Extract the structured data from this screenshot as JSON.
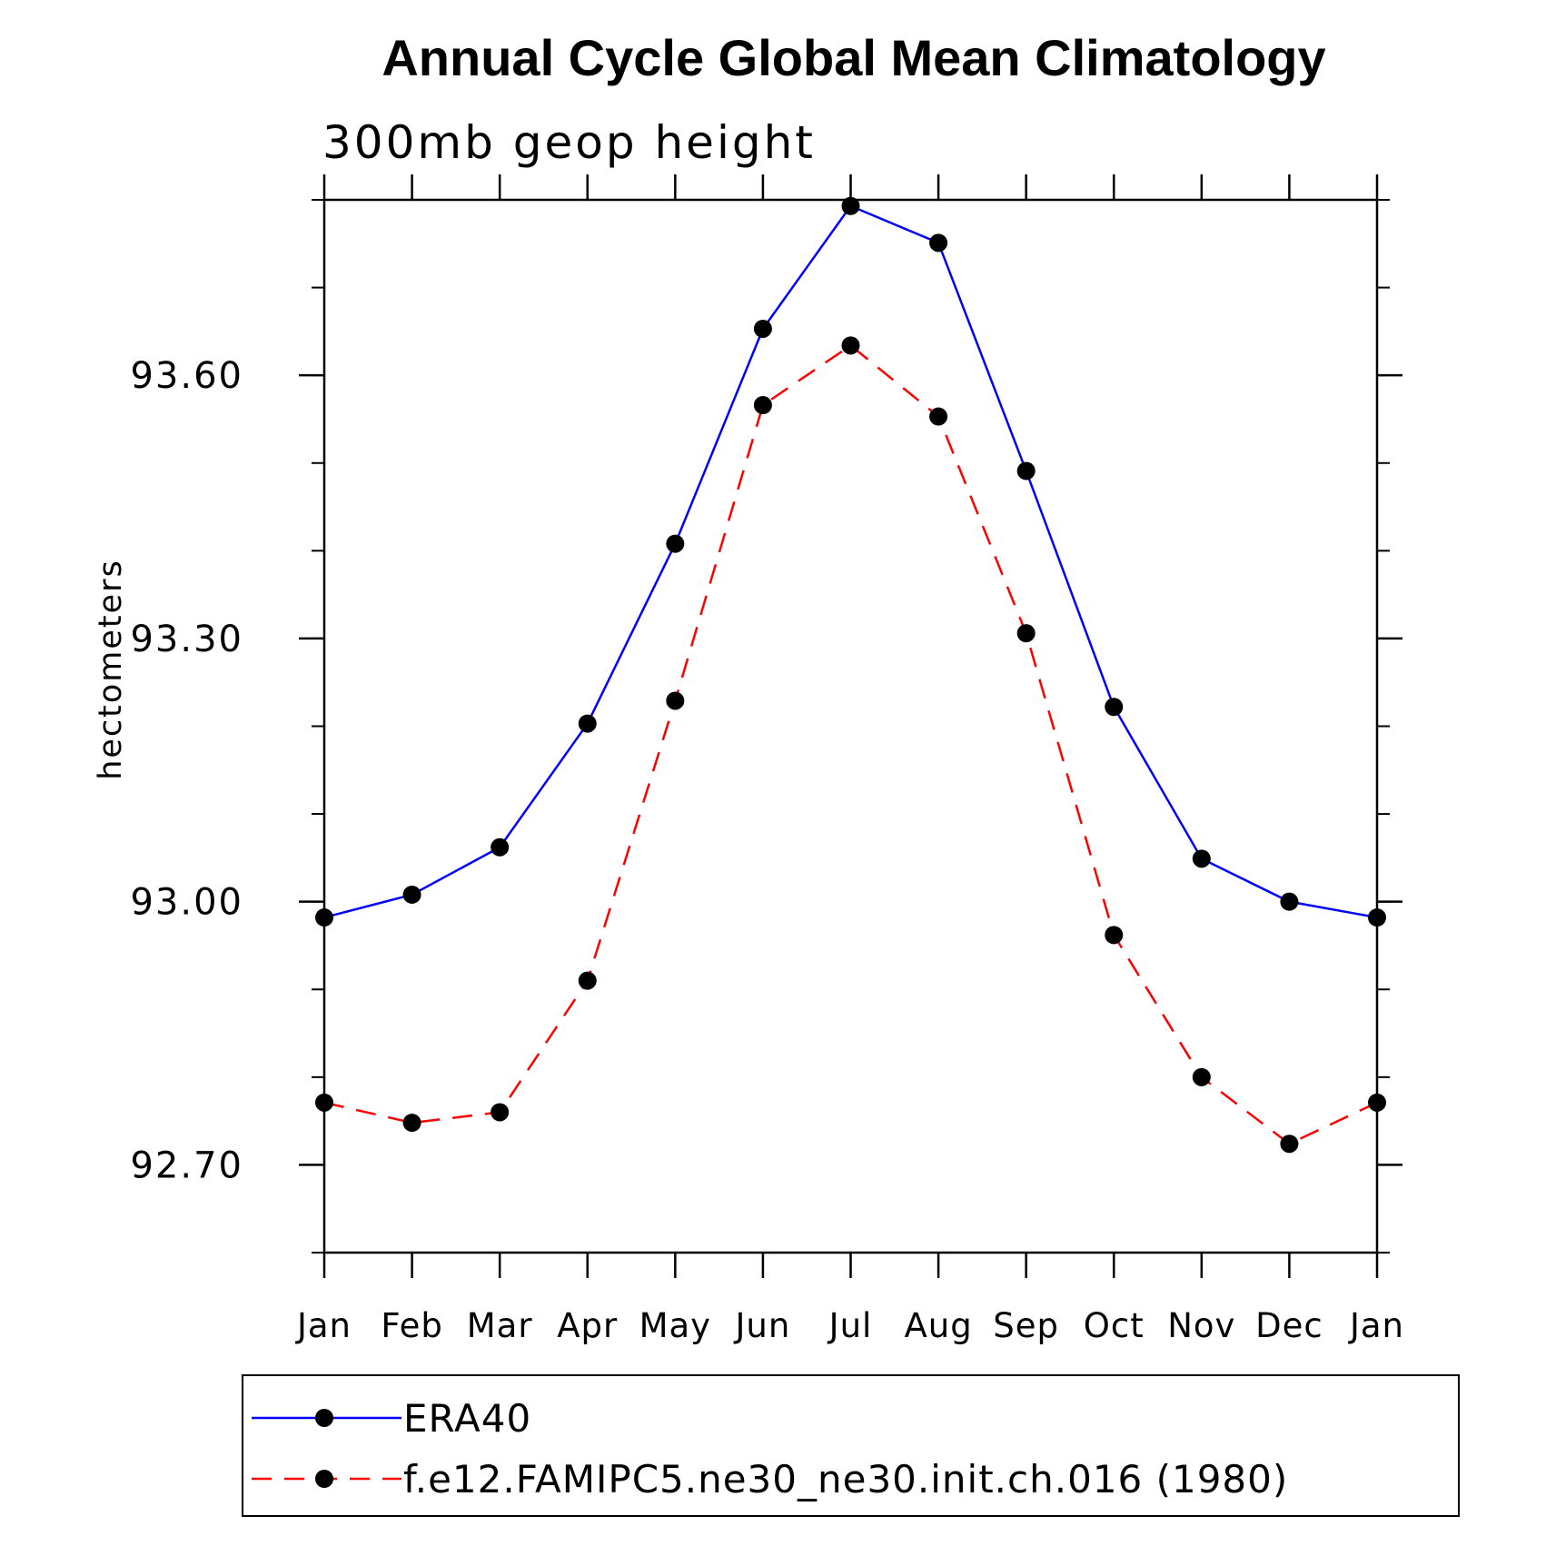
{
  "chart_data": {
    "type": "line",
    "title": "Annual Cycle Global Mean Climatology",
    "subtitle": "300mb geop height",
    "xlabel": "",
    "ylabel": "hectometers",
    "categories": [
      "Jan",
      "Feb",
      "Mar",
      "Apr",
      "May",
      "Jun",
      "Jul",
      "Aug",
      "Sep",
      "Oct",
      "Nov",
      "Dec",
      "Jan"
    ],
    "ylim": [
      92.6,
      93.8
    ],
    "yticks": [
      "93.60",
      "93.30",
      "93.00",
      "92.70"
    ],
    "ytick_values": [
      93.6,
      93.3,
      93.0,
      92.7
    ],
    "y_minor_step": 0.1,
    "grid": false,
    "legend_position": "bottom",
    "series": [
      {
        "name": "ERA40",
        "color": "#0000ff",
        "line_style": "solid",
        "marker": "filled-circle",
        "values": [
          92.982,
          93.008,
          93.062,
          93.203,
          93.408,
          93.653,
          93.793,
          93.751,
          93.491,
          93.222,
          93.049,
          93.0,
          92.982
        ]
      },
      {
        "name": "f.e12.FAMIPC5.ne30_ne30.init.ch.016 (1980)",
        "color": "#ff0000",
        "line_style": "dashed",
        "marker": "filled-circle",
        "values": [
          92.771,
          92.748,
          92.76,
          92.91,
          93.229,
          93.566,
          93.634,
          93.553,
          93.306,
          92.962,
          92.8,
          92.724,
          92.771
        ]
      }
    ]
  }
}
